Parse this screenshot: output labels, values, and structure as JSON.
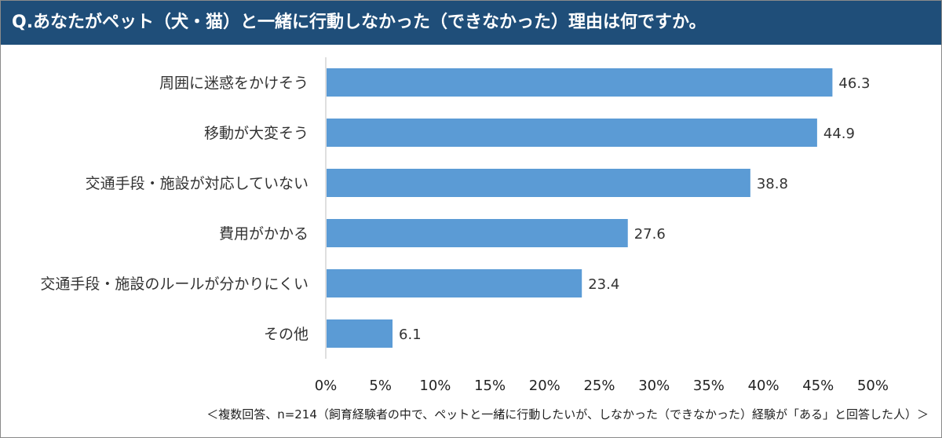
{
  "header": {
    "title": "Q.あなたがペット（犬・猫）と一緒に行動しなかった（できなかった）理由は何ですか。"
  },
  "colors": {
    "header_bg": "#1f4e79",
    "bar": "#5b9bd5",
    "text": "#333333"
  },
  "chart_data": {
    "type": "bar",
    "orientation": "horizontal",
    "title": "Q.あなたがペット（犬・猫）と一緒に行動しなかった（できなかった）理由は何ですか。",
    "categories": [
      "周囲に迷惑をかけそう",
      "移動が大変そう",
      "交通手段・施設が対応していない",
      "費用がかかる",
      "交通手段・施設のルールが分かりにくい",
      "その他"
    ],
    "values": [
      46.3,
      44.9,
      38.8,
      27.6,
      23.4,
      6.1
    ],
    "value_labels": [
      "46.3",
      "44.9",
      "38.8",
      "27.6",
      "23.4",
      "6.1"
    ],
    "xlim": [
      0,
      50
    ],
    "xticks": [
      0,
      5,
      10,
      15,
      20,
      25,
      30,
      35,
      40,
      45,
      50
    ],
    "xtick_labels": [
      "0%",
      "5%",
      "10%",
      "15%",
      "20%",
      "25%",
      "30%",
      "35%",
      "40%",
      "45%",
      "50%"
    ],
    "xlabel": "",
    "ylabel": "",
    "grid": false,
    "legend": "none"
  },
  "footnote": "＜複数回答、n=214（飼育経験者の中で、ペットと一緒に行動したいが、しなかった（できなかった）経験が「ある」と回答した人）＞"
}
